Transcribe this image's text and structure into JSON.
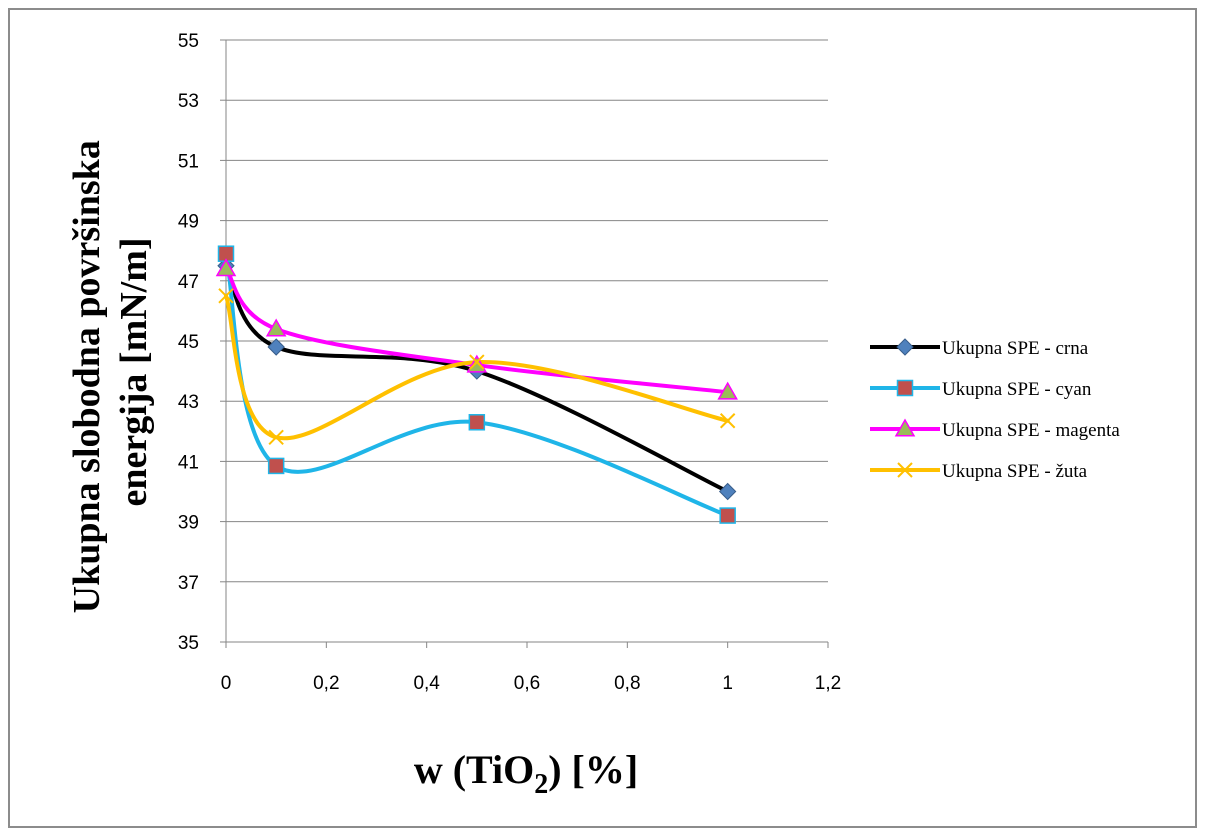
{
  "chart_data": {
    "type": "line",
    "smooth": true,
    "x": [
      0,
      0.1,
      0.5,
      1
    ],
    "series": [
      {
        "name": "Ukupna SPE - crna",
        "color": "#000000",
        "marker": "diamond",
        "marker_color": "#4f81bd",
        "values": [
          47.5,
          44.8,
          44.0,
          40.0
        ]
      },
      {
        "name": "Ukupna SPE - cyan",
        "color": "#1fb5e8",
        "marker": "square",
        "marker_color": "#c0504d",
        "values": [
          47.9,
          40.85,
          42.3,
          39.2
        ]
      },
      {
        "name": "Ukupna SPE - magenta",
        "color": "#ff00ff",
        "marker": "triangle",
        "marker_color": "#9bbb59",
        "values": [
          47.4,
          45.4,
          44.2,
          43.3
        ]
      },
      {
        "name": "Ukupna SPE - žuta",
        "color": "#ffc000",
        "marker": "x",
        "marker_color": "#ffc000",
        "values": [
          46.5,
          41.8,
          44.3,
          42.35
        ]
      }
    ],
    "ylabel_lines": [
      "Ukupna slobodna površinska",
      "energija [mN/m]"
    ],
    "xlabel": {
      "prefix": "w (TiO",
      "sub": "2",
      "suffix": ") [%]"
    },
    "xlim": [
      0,
      1.2
    ],
    "ylim": [
      35,
      55
    ],
    "xticks": [
      0,
      0.2,
      0.4,
      0.6,
      0.8,
      1,
      1.2
    ],
    "xtick_labels": [
      "0",
      "0,2",
      "0,4",
      "0,6",
      "0,8",
      "1",
      "1,2"
    ],
    "yticks": [
      35,
      37,
      39,
      41,
      43,
      45,
      47,
      49,
      51,
      53,
      55
    ],
    "ytick_labels": [
      "35",
      "37",
      "39",
      "41",
      "43",
      "45",
      "47",
      "49",
      "51",
      "53",
      "55"
    ],
    "grid": "horizontal",
    "legend_position": "right"
  }
}
